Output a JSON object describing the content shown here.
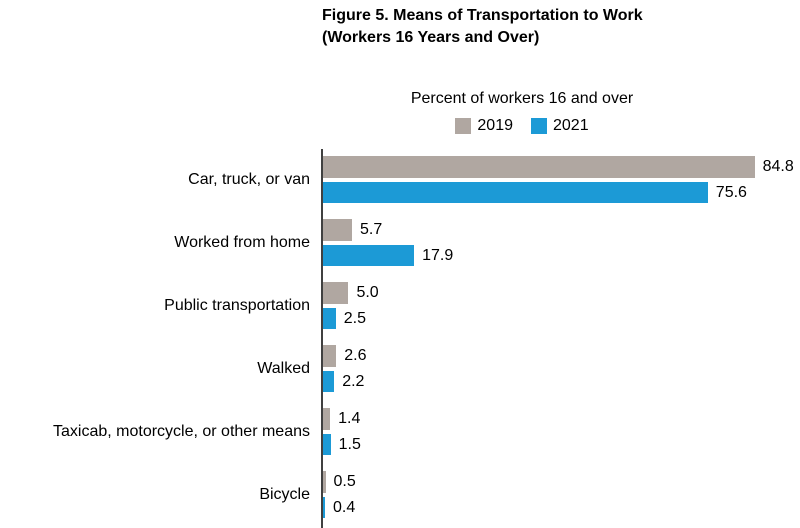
{
  "header": {
    "title_line1": "Figure 5. Means of Transportation to Work",
    "title_line2": "(Workers 16 Years and Over)",
    "subtitle": "Percent of workers 16 and over"
  },
  "legend": {
    "items": [
      {
        "label": "2019",
        "color": "#b0a7a1"
      },
      {
        "label": "2021",
        "color": "#1c9ad6"
      }
    ]
  },
  "colors": {
    "bar_2019": "#b0a7a1",
    "bar_2021": "#1c9ad6",
    "axis": "#404040",
    "text": "#000000"
  },
  "chart_data": {
    "type": "bar",
    "orientation": "horizontal",
    "title": "Figure 5. Means of Transportation to Work (Workers 16 Years and Over)",
    "xlabel": "Percent of workers 16 and over",
    "ylabel": "",
    "categories": [
      "Car, truck, or van",
      "Worked from home",
      "Public transportation",
      "Walked",
      "Taxicab, motorcycle, or other means",
      "Bicycle"
    ],
    "series": [
      {
        "name": "2019",
        "color": "#b0a7a1",
        "values": [
          84.8,
          5.7,
          5.0,
          2.6,
          1.4,
          0.5
        ]
      },
      {
        "name": "2021",
        "color": "#1c9ad6",
        "values": [
          75.6,
          17.9,
          2.5,
          2.2,
          1.5,
          0.4
        ]
      }
    ],
    "xlim": [
      0,
      93
    ],
    "grid": false,
    "legend_position": "top-center",
    "value_labels_shown": true,
    "value_label_format": "one-decimal"
  }
}
